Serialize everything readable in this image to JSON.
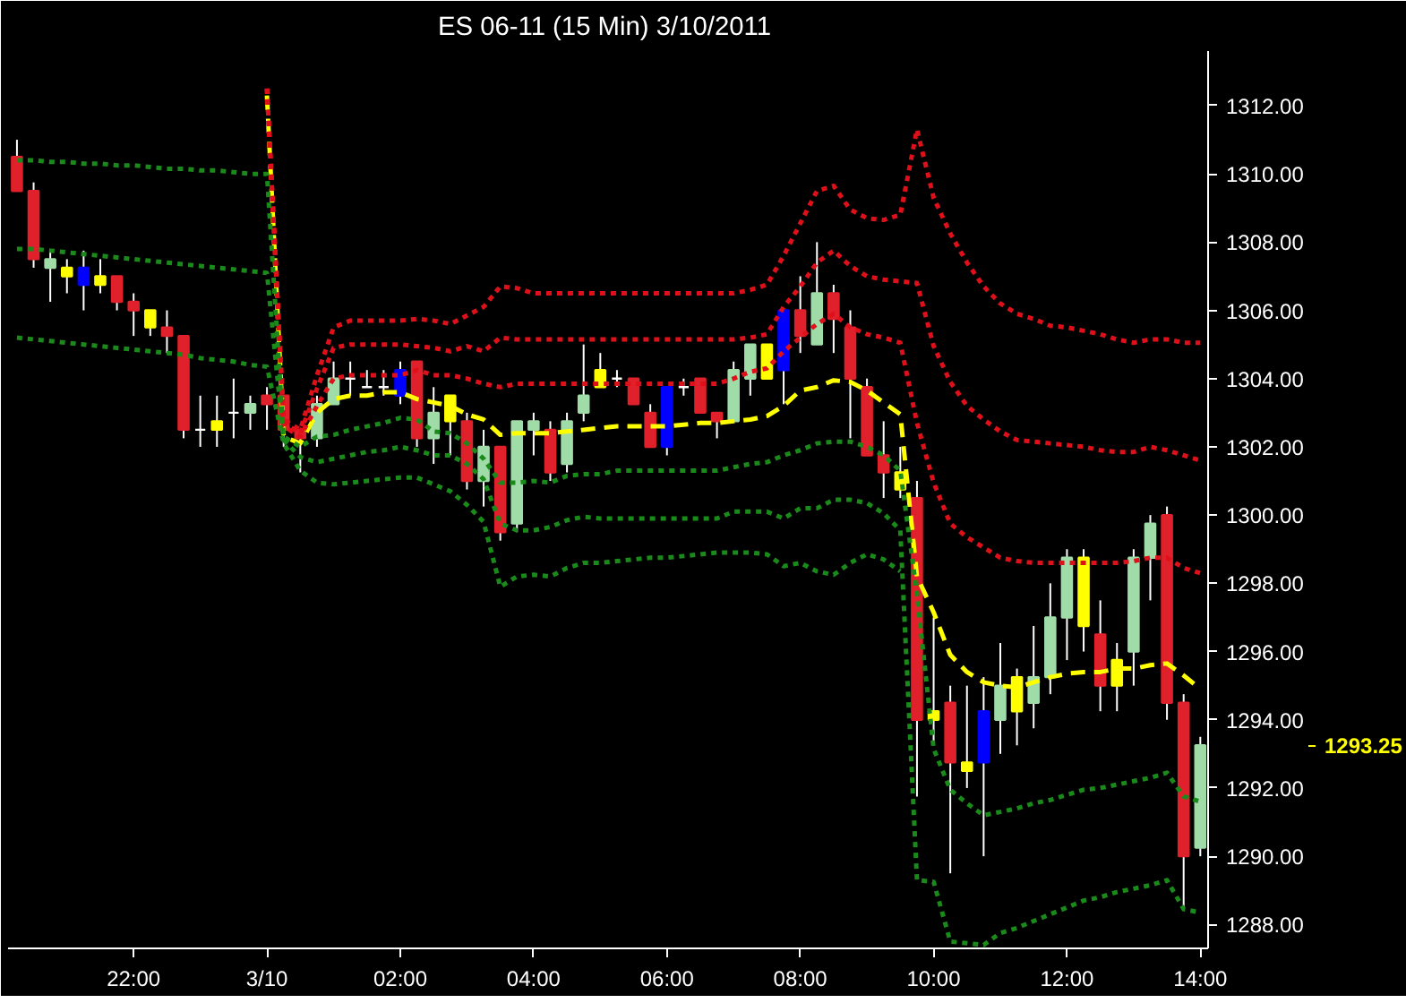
{
  "chart_data": {
    "type": "candlestick",
    "title": "ES 06-11 (15 Min)  3/10/2011",
    "x": [
      "2011-03-09T20:15",
      "2011-03-09T20:30",
      "2011-03-09T20:45",
      "2011-03-09T21:00",
      "2011-03-09T21:15",
      "2011-03-09T21:30",
      "2011-03-09T21:45",
      "2011-03-09T22:00",
      "2011-03-09T22:15",
      "2011-03-09T22:30",
      "2011-03-09T22:45",
      "2011-03-09T23:00",
      "2011-03-09T23:15",
      "2011-03-09T23:30",
      "2011-03-09T23:45",
      "2011-03-10T00:00",
      "2011-03-10T00:15",
      "2011-03-10T00:30",
      "2011-03-10T00:45",
      "2011-03-10T01:00",
      "2011-03-10T01:15",
      "2011-03-10T01:30",
      "2011-03-10T01:45",
      "2011-03-10T02:00",
      "2011-03-10T02:15",
      "2011-03-10T02:30",
      "2011-03-10T02:45",
      "2011-03-10T03:00",
      "2011-03-10T03:15",
      "2011-03-10T03:30",
      "2011-03-10T03:45",
      "2011-03-10T04:00",
      "2011-03-10T04:15",
      "2011-03-10T04:30",
      "2011-03-10T04:45",
      "2011-03-10T05:00",
      "2011-03-10T05:15",
      "2011-03-10T05:30",
      "2011-03-10T05:45",
      "2011-03-10T06:00",
      "2011-03-10T06:15",
      "2011-03-10T06:30",
      "2011-03-10T06:45",
      "2011-03-10T07:00",
      "2011-03-10T07:15",
      "2011-03-10T07:30",
      "2011-03-10T07:45",
      "2011-03-10T08:00",
      "2011-03-10T08:15",
      "2011-03-10T08:30",
      "2011-03-10T08:45",
      "2011-03-10T09:00",
      "2011-03-10T09:15",
      "2011-03-10T09:30",
      "2011-03-10T09:45",
      "2011-03-10T10:00",
      "2011-03-10T10:15",
      "2011-03-10T10:30",
      "2011-03-10T10:45",
      "2011-03-10T11:00",
      "2011-03-10T11:15",
      "2011-03-10T11:30",
      "2011-03-10T11:45",
      "2011-03-10T12:00",
      "2011-03-10T12:15",
      "2011-03-10T12:30",
      "2011-03-10T12:45",
      "2011-03-10T13:00",
      "2011-03-10T13:15",
      "2011-03-10T13:30",
      "2011-03-10T13:45",
      "2011-03-10T14:00"
    ],
    "ohlc": [
      [
        1310.5,
        1311,
        1309.5,
        1309.5
      ],
      [
        1309.5,
        1309.75,
        1307.25,
        1307.5
      ],
      [
        1307.25,
        1307.75,
        1306.25,
        1307.5
      ],
      [
        1307.25,
        1307.5,
        1306.5,
        1307
      ],
      [
        1307.25,
        1307.75,
        1306,
        1306.75
      ],
      [
        1306.75,
        1307.5,
        1306.5,
        1307
      ],
      [
        1307,
        1307,
        1306,
        1306.25
      ],
      [
        1306.25,
        1306.5,
        1305.25,
        1306
      ],
      [
        1306,
        1306,
        1305.25,
        1305.5
      ],
      [
        1305.5,
        1306,
        1304.75,
        1305.25
      ],
      [
        1305.25,
        1305.25,
        1302.25,
        1302.5
      ],
      [
        1302.5,
        1303.5,
        1302,
        1302.5
      ],
      [
        1302.5,
        1303.5,
        1302,
        1302.75
      ],
      [
        1303,
        1304,
        1302.25,
        1303
      ],
      [
        1303,
        1303.5,
        1302.5,
        1303.25
      ],
      [
        1303.5,
        1303.75,
        1302.5,
        1303.25
      ],
      [
        1303.5,
        1303.5,
        1302,
        1302.5
      ],
      [
        1302.5,
        1302.5,
        1301.25,
        1302.25
      ],
      [
        1302.25,
        1303.5,
        1302,
        1303.25
      ],
      [
        1303.25,
        1304.5,
        1303.25,
        1304
      ],
      [
        1304,
        1304.5,
        1303.5,
        1304
      ],
      [
        1303.75,
        1304.25,
        1303.75,
        1303.75
      ],
      [
        1303.75,
        1304.25,
        1303.5,
        1303.75
      ],
      [
        1304.25,
        1304.5,
        1303.25,
        1303.5
      ],
      [
        1304.5,
        1304.5,
        1302,
        1302.25
      ],
      [
        1302.25,
        1303.75,
        1301.5,
        1303
      ],
      [
        1303.5,
        1303.5,
        1301.75,
        1302.75
      ],
      [
        1302.75,
        1303,
        1300.75,
        1301
      ],
      [
        1301,
        1302.5,
        1300.25,
        1302
      ],
      [
        1302,
        1302,
        1299.25,
        1299.5
      ],
      [
        1299.75,
        1302.75,
        1299.5,
        1302.75
      ],
      [
        1302.5,
        1303,
        1301.75,
        1302.75
      ],
      [
        1302.5,
        1302.75,
        1301,
        1301.25
      ],
      [
        1301.5,
        1303,
        1301.25,
        1302.75
      ],
      [
        1303,
        1305,
        1302.75,
        1303.5
      ],
      [
        1303.75,
        1304.75,
        1303.75,
        1304.25
      ],
      [
        1304,
        1304.25,
        1303.75,
        1304
      ],
      [
        1304,
        1304,
        1303.25,
        1303.25
      ],
      [
        1303,
        1303.25,
        1302,
        1302
      ],
      [
        1303.75,
        1303.75,
        1301.75,
        1302
      ],
      [
        1303.75,
        1304,
        1303.5,
        1303.75
      ],
      [
        1304,
        1304,
        1303,
        1303
      ],
      [
        1303,
        1303,
        1302.25,
        1302.75
      ],
      [
        1302.75,
        1304.5,
        1302.75,
        1304.25
      ],
      [
        1304,
        1305,
        1303.5,
        1305
      ],
      [
        1305,
        1305,
        1304,
        1304
      ],
      [
        1306,
        1306,
        1303.25,
        1304.25
      ],
      [
        1306,
        1307,
        1304.75,
        1305.25
      ],
      [
        1305,
        1308,
        1305,
        1306.5
      ],
      [
        1306.5,
        1306.75,
        1304.75,
        1305.75
      ],
      [
        1305.5,
        1306,
        1302.25,
        1304
      ],
      [
        1303.75,
        1304,
        1301.75,
        1301.75
      ],
      [
        1301.75,
        1302.75,
        1300.5,
        1301.25
      ],
      [
        1301.25,
        1302,
        1300.5,
        1300.75
      ],
      [
        1300.5,
        1301,
        1291.75,
        1294
      ],
      [
        1294,
        1297,
        1293.25,
        1294.25
      ],
      [
        1294.5,
        1295,
        1289.5,
        1292.75
      ],
      [
        1292.5,
        1295,
        1292,
        1292.75
      ],
      [
        1294.25,
        1295.25,
        1290,
        1292.75
      ],
      [
        1294,
        1296.25,
        1293,
        1295
      ],
      [
        1294.25,
        1295.5,
        1293.25,
        1295.25
      ],
      [
        1294.5,
        1296.75,
        1293.75,
        1295.25
      ],
      [
        1295.25,
        1298,
        1294.75,
        1297
      ],
      [
        1297,
        1299,
        1295.75,
        1298.75
      ],
      [
        1298.75,
        1299,
        1296,
        1296.75
      ],
      [
        1296.5,
        1297.5,
        1294.25,
        1295
      ],
      [
        1295,
        1296.25,
        1294.25,
        1295.75
      ],
      [
        1296,
        1299,
        1295,
        1298.75
      ],
      [
        1298.75,
        1300,
        1297.5,
        1299.75
      ],
      [
        1300,
        1300.25,
        1294,
        1294.5
      ],
      [
        1294.5,
        1294.75,
        1288.5,
        1290
      ],
      [
        1290.25,
        1293.5,
        1290,
        1293.25
      ]
    ],
    "colors": [
      "#e0202a",
      "#e0202a",
      "#a0dca8",
      "#ffff00",
      "#0000ff",
      "#ffff00",
      "#e0202a",
      "#e0202a",
      "#ffff00",
      "#e0202a",
      "#e0202a",
      "#ffffff",
      "#ffff00",
      "#ffffff",
      "#a0dca8",
      "#e0202a",
      "#e0202a",
      "#e0202a",
      "#a0dca8",
      "#a0dca8",
      "#ffffff",
      "#ffffff",
      "#ffffff",
      "#0000ff",
      "#e0202a",
      "#a0dca8",
      "#ffff00",
      "#e0202a",
      "#a0dca8",
      "#e0202a",
      "#a0dca8",
      "#a0dca8",
      "#e0202a",
      "#a0dca8",
      "#a0dca8",
      "#ffff00",
      "#ffffff",
      "#e0202a",
      "#e0202a",
      "#0000ff",
      "#ffffff",
      "#e0202a",
      "#e0202a",
      "#a0dca8",
      "#a0dca8",
      "#ffff00",
      "#0000ff",
      "#e0202a",
      "#a0dca8",
      "#e0202a",
      "#e0202a",
      "#e0202a",
      "#e0202a",
      "#ffff00",
      "#e0202a",
      "#ffff00",
      "#e0202a",
      "#ffff00",
      "#0000ff",
      "#a0dca8",
      "#ffff00",
      "#a0dca8",
      "#a0dca8",
      "#a0dca8",
      "#ffff00",
      "#e0202a",
      "#ffff00",
      "#a0dca8",
      "#a0dca8",
      "#e0202a",
      "#e0202a",
      "#a0dca8"
    ],
    "series": [
      {
        "type": "line",
        "color": "#ffff00",
        "line_style": "dashed",
        "values": [
          null,
          null,
          null,
          null,
          null,
          null,
          null,
          null,
          null,
          null,
          null,
          null,
          null,
          null,
          null,
          1312.3,
          1302.3,
          1302.1,
          1303.0,
          1303.4,
          1303.5,
          1303.5,
          1303.6,
          1303.6,
          1303.4,
          1303.3,
          1303.2,
          1302.95,
          1302.8,
          1302.35,
          1302.4,
          1302.4,
          1302.4,
          1302.45,
          1302.5,
          1302.55,
          1302.6,
          1302.6,
          1302.6,
          1302.6,
          1302.65,
          1302.7,
          1302.7,
          1302.75,
          1302.8,
          1302.9,
          1303.2,
          1303.65,
          1303.75,
          1303.95,
          1303.9,
          1303.65,
          1303.3,
          1302.95,
          1298.2,
          1297.15,
          1295.9,
          1295.4,
          1295.1,
          1295.0,
          1294.95,
          1295.1,
          1295.25,
          1295.35,
          1295.4,
          1295.4,
          1295.5,
          1295.5,
          1295.6,
          1295.65,
          1295.3,
          1294.9
        ]
      },
      {
        "type": "line",
        "color": "#e0101a",
        "line_style": "dotted",
        "values": [
          null,
          null,
          null,
          null,
          null,
          null,
          null,
          null,
          null,
          null,
          null,
          null,
          null,
          null,
          null,
          1312.5,
          1302.6,
          1302.3,
          1303.2,
          1304.0,
          1304.1,
          1304.1,
          1304.1,
          1304.1,
          1304.25,
          1304.1,
          1304.1,
          1304.0,
          1303.85,
          1303.75,
          1303.85,
          1303.85,
          1303.85,
          1303.85,
          1303.85,
          1303.85,
          1303.85,
          1303.85,
          1303.85,
          1303.85,
          1303.85,
          1303.85,
          1303.85,
          1304.0,
          1304.2,
          1304.3,
          1304.8,
          1305.2,
          1305.6,
          1305.9,
          1305.5,
          1305.3,
          1305.2,
          1305.05,
          1302.7,
          1300.95,
          1299.75,
          1299.35,
          1299.05,
          1298.75,
          1298.65,
          1298.6,
          1298.6,
          1298.6,
          1298.6,
          1298.6,
          1298.6,
          1298.65,
          1298.75,
          1298.75,
          1298.45,
          1298.3
        ]
      },
      {
        "type": "line",
        "color": "#e0101a",
        "line_style": "dotted",
        "values": [
          null,
          null,
          null,
          null,
          null,
          null,
          null,
          null,
          null,
          null,
          null,
          null,
          null,
          null,
          null,
          1312.5,
          1302.7,
          1302.4,
          1303.7,
          1304.9,
          1305.0,
          1305.0,
          1305.0,
          1305.0,
          1304.95,
          1304.9,
          1304.8,
          1304.95,
          1304.8,
          1305.2,
          1305.15,
          1305.15,
          1305.15,
          1305.15,
          1305.15,
          1305.15,
          1305.15,
          1305.15,
          1305.15,
          1305.15,
          1305.15,
          1305.15,
          1305.15,
          1305.15,
          1305.2,
          1305.3,
          1306.1,
          1306.7,
          1307.4,
          1307.75,
          1307.3,
          1307.0,
          1306.9,
          1306.85,
          1306.8,
          1304.95,
          1303.9,
          1303.2,
          1302.8,
          1302.45,
          1302.2,
          1302.15,
          1302.1,
          1302.05,
          1302.0,
          1301.9,
          1301.85,
          1301.85,
          1302.0,
          1301.9,
          1301.75,
          1301.6
        ]
      },
      {
        "type": "line",
        "color": "#e0101a",
        "line_style": "dotted",
        "values": [
          null,
          null,
          null,
          null,
          null,
          null,
          null,
          null,
          null,
          null,
          null,
          null,
          null,
          null,
          null,
          1312.5,
          1302.8,
          1302.5,
          1304.1,
          1305.5,
          1305.7,
          1305.7,
          1305.7,
          1305.7,
          1305.75,
          1305.7,
          1305.6,
          1305.85,
          1306.1,
          1306.7,
          1306.65,
          1306.5,
          1306.5,
          1306.5,
          1306.5,
          1306.5,
          1306.5,
          1306.5,
          1306.5,
          1306.5,
          1306.5,
          1306.5,
          1306.5,
          1306.5,
          1306.6,
          1306.75,
          1307.6,
          1308.55,
          1309.5,
          1309.65,
          1308.95,
          1308.7,
          1308.65,
          1308.8,
          1311.3,
          1309.3,
          1308.25,
          1307.4,
          1306.7,
          1306.2,
          1305.9,
          1305.75,
          1305.55,
          1305.5,
          1305.4,
          1305.3,
          1305.15,
          1305.05,
          1305.15,
          1305.15,
          1305.05,
          1305.05
        ]
      },
      {
        "type": "line",
        "color": "#1a8a1a",
        "line_style": "dotted",
        "values": [
          1310.4,
          1310.4,
          1310.35,
          1310.35,
          1310.3,
          1310.3,
          1310.25,
          1310.25,
          1310.2,
          1310.15,
          1310.15,
          1310.1,
          1310.1,
          1310.05,
          1310.0,
          1310.0,
          1302.3,
          1302.0,
          1302.3,
          1302.35,
          1302.5,
          1302.6,
          1302.7,
          1302.85,
          1302.8,
          1302.45,
          1302.4,
          1302.1,
          1301.65,
          1300.95,
          1300.95,
          1301.0,
          1300.95,
          1301.15,
          1301.2,
          1301.2,
          1301.3,
          1301.3,
          1301.3,
          1301.3,
          1301.3,
          1301.3,
          1301.3,
          1301.4,
          1301.5,
          1301.55,
          1301.75,
          1301.9,
          1302.1,
          1302.15,
          1302.15,
          1302.0,
          1301.75,
          1301.3,
          1297.7,
          1293.15,
          1291.95,
          1291.55,
          1291.2,
          1291.3,
          1291.4,
          1291.55,
          1291.65,
          1291.8,
          1291.95,
          1292.0,
          1292.1,
          1292.2,
          1292.3,
          1292.45,
          1291.75,
          1291.6
        ]
      },
      {
        "type": "line",
        "color": "#1a8a1a",
        "line_style": "dotted",
        "values": [
          1307.8,
          1307.8,
          1307.75,
          1307.7,
          1307.65,
          1307.6,
          1307.55,
          1307.5,
          1307.45,
          1307.4,
          1307.35,
          1307.3,
          1307.25,
          1307.2,
          1307.15,
          1307.1,
          1302.2,
          1301.7,
          1301.55,
          1301.65,
          1301.75,
          1301.85,
          1301.9,
          1302.0,
          1301.9,
          1301.75,
          1301.75,
          1301.5,
          1301.05,
          1299.75,
          1299.55,
          1299.55,
          1299.65,
          1299.85,
          1299.95,
          1299.9,
          1299.9,
          1299.9,
          1299.9,
          1299.9,
          1299.9,
          1299.9,
          1299.9,
          1300.1,
          1300.1,
          1300.1,
          1299.9,
          1300.2,
          1300.2,
          1300.45,
          1300.45,
          1300.35,
          1300.05,
          1299.55,
          1289.3,
          1289.25,
          1287.5,
          1287.45,
          1287.4,
          1287.75,
          1287.9,
          1288.1,
          1288.3,
          1288.5,
          1288.7,
          1288.8,
          1288.95,
          1289.05,
          1289.15,
          1289.3,
          1288.45,
          1288.35
        ]
      },
      {
        "type": "line",
        "color": "#1a8a1a",
        "line_style": "dotted",
        "values": [
          1305.2,
          1305.15,
          1305.1,
          1305.05,
          1305.0,
          1304.95,
          1304.9,
          1304.85,
          1304.8,
          1304.75,
          1304.7,
          1304.6,
          1304.55,
          1304.5,
          1304.4,
          1304.35,
          1302.1,
          1301.3,
          1300.95,
          1300.9,
          1300.95,
          1301.0,
          1301.05,
          1301.1,
          1301.1,
          1300.9,
          1300.7,
          1300.3,
          1299.8,
          1297.9,
          1298.2,
          1298.25,
          1298.2,
          1298.45,
          1298.6,
          1298.6,
          1298.65,
          1298.7,
          1298.75,
          1298.75,
          1298.8,
          1298.85,
          1298.9,
          1298.9,
          1298.9,
          1298.85,
          1298.5,
          1298.6,
          1298.35,
          1298.25,
          1298.6,
          1298.85,
          1298.7,
          1298.35,
          null,
          null,
          null,
          null,
          null,
          null,
          null,
          null,
          null,
          null,
          null,
          null,
          null,
          null,
          null,
          null,
          null,
          null
        ]
      }
    ],
    "xlim": [
      "2011-03-09T20:07",
      "2011-03-10T14:07"
    ],
    "ylim": [
      1287.3,
      1313.6
    ],
    "xticks": [
      {
        "value": "2011-03-09T22:00",
        "label": "22:00"
      },
      {
        "value": "2011-03-10T00:00",
        "label": "3/10"
      },
      {
        "value": "2011-03-10T02:00",
        "label": "02:00"
      },
      {
        "value": "2011-03-10T04:00",
        "label": "04:00"
      },
      {
        "value": "2011-03-10T06:00",
        "label": "06:00"
      },
      {
        "value": "2011-03-10T08:00",
        "label": "08:00"
      },
      {
        "value": "2011-03-10T10:00",
        "label": "10:00"
      },
      {
        "value": "2011-03-10T12:00",
        "label": "12:00"
      },
      {
        "value": "2011-03-10T14:00",
        "label": "14:00"
      }
    ],
    "yticks": [
      {
        "value": 1288,
        "label": "1288.00"
      },
      {
        "value": 1290,
        "label": "1290.00"
      },
      {
        "value": 1292,
        "label": "1292.00"
      },
      {
        "value": 1294,
        "label": "1294.00"
      },
      {
        "value": 1296,
        "label": "1296.00"
      },
      {
        "value": 1298,
        "label": "1298.00"
      },
      {
        "value": 1300,
        "label": "1300.00"
      },
      {
        "value": 1302,
        "label": "1302.00"
      },
      {
        "value": 1304,
        "label": "1304.00"
      },
      {
        "value": 1306,
        "label": "1306.00"
      },
      {
        "value": 1308,
        "label": "1308.00"
      },
      {
        "value": 1310,
        "label": "1310.00"
      },
      {
        "value": 1312,
        "label": "1312.00"
      }
    ],
    "annotations": [
      "1293.25"
    ]
  }
}
